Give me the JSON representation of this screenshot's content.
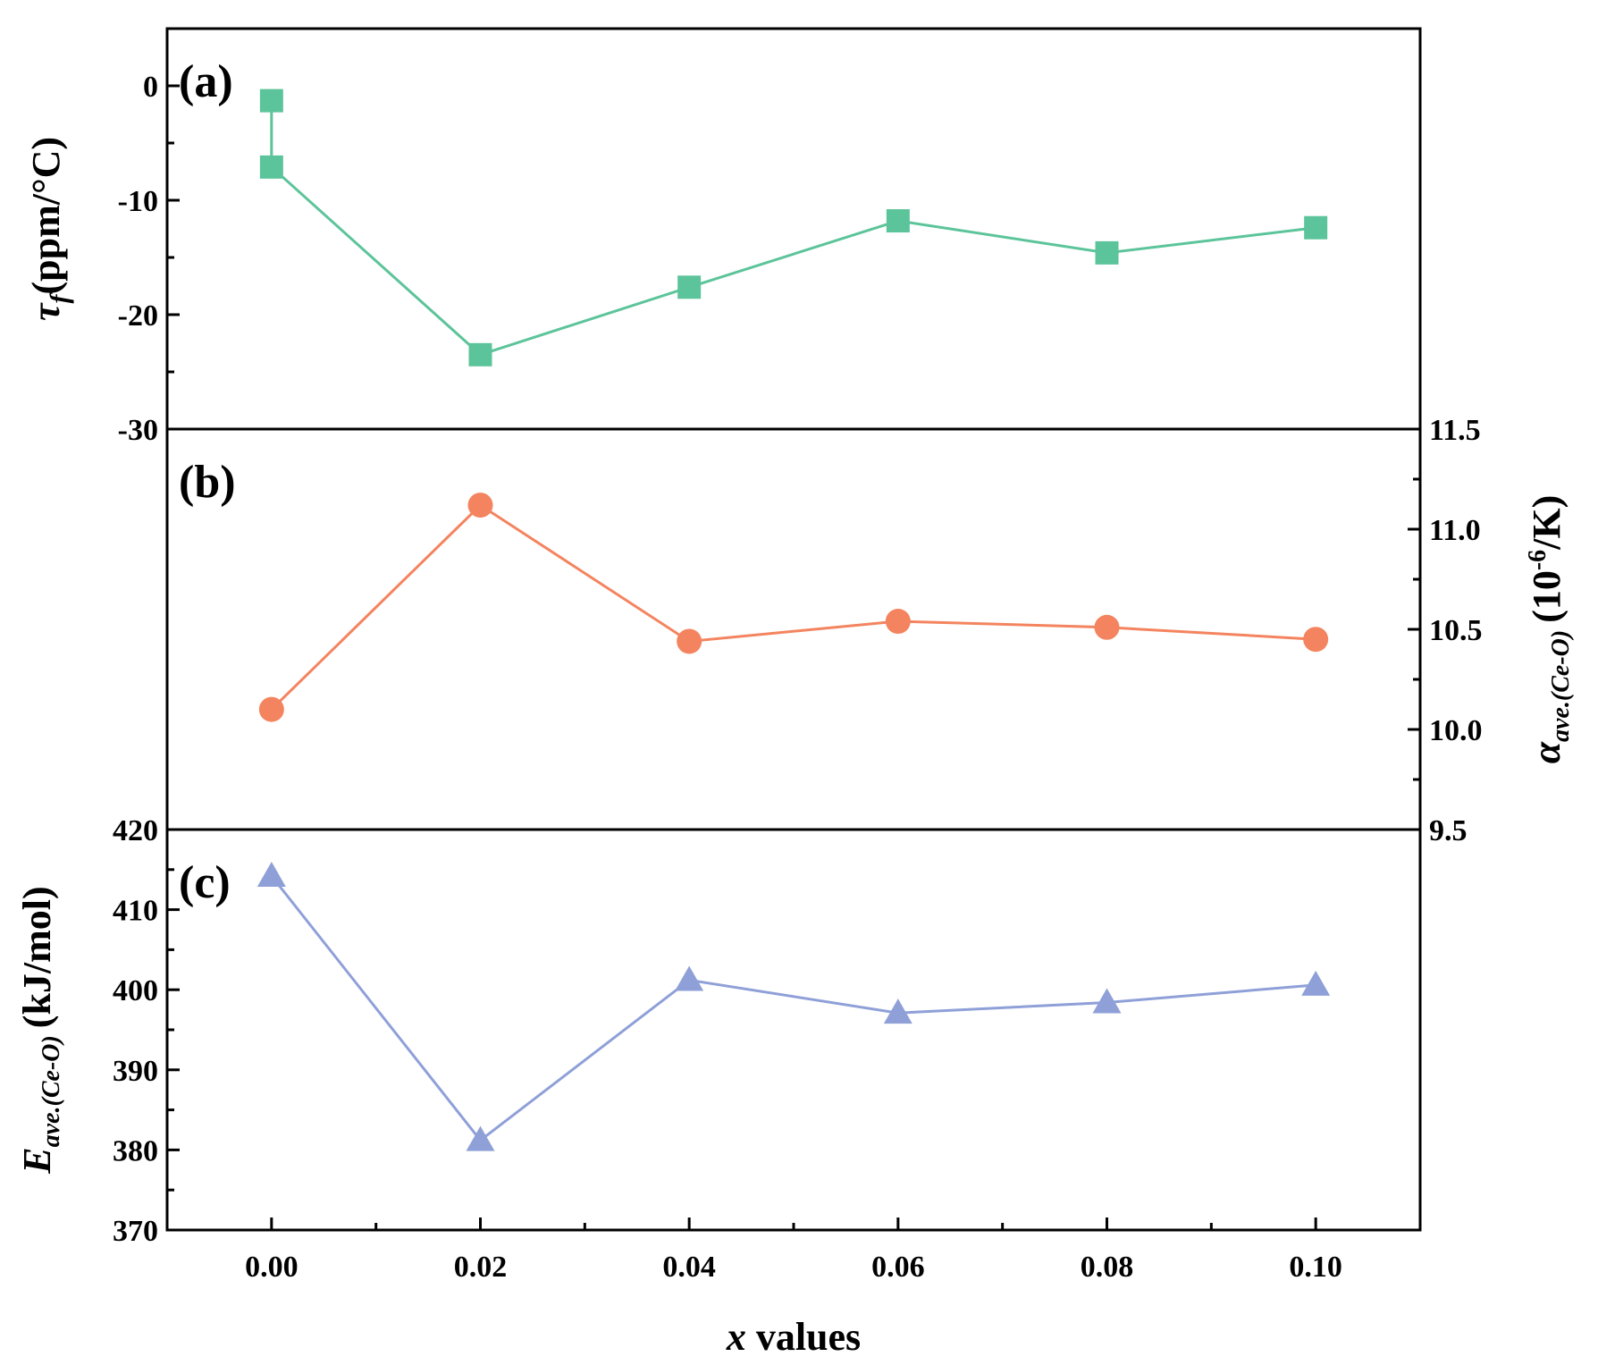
{
  "chart_data": [
    {
      "type": "line",
      "panel_label": "(a)",
      "marker": "square",
      "color": "#5cc49a",
      "x": [
        0.0,
        0.0,
        0.02,
        0.04,
        0.06,
        0.08,
        0.1
      ],
      "values": [
        -1.3,
        -7.1,
        -23.5,
        -17.6,
        -11.8,
        -14.6,
        -12.4
      ],
      "ylabel": {
        "symbol": "τ",
        "sub": "f",
        "text": "(ppm/°C)"
      },
      "y_axis_side": "left",
      "ylim": [
        -30,
        5
      ],
      "yticks": [
        0,
        -10,
        -20,
        -30
      ],
      "ytick_labels": [
        "0",
        "-10",
        "-20",
        "-30"
      ]
    },
    {
      "type": "line",
      "panel_label": "(b)",
      "marker": "circle",
      "color": "#f4845f",
      "x": [
        0.0,
        0.02,
        0.04,
        0.06,
        0.08,
        0.1
      ],
      "values": [
        10.1,
        11.12,
        10.44,
        10.54,
        10.51,
        10.45
      ],
      "ylabel": {
        "symbol": "α",
        "sub": "ave.(Ce-O)",
        "text": "(10",
        "sup": "-6",
        "tail": "/K)"
      },
      "y_axis_side": "right",
      "ylim": [
        9.5,
        11.5
      ],
      "yticks": [
        11.5,
        11.0,
        10.5,
        10.0,
        9.5
      ],
      "ytick_labels": [
        "11.5",
        "11.0",
        "10.5",
        "10.0",
        "9.5"
      ]
    },
    {
      "type": "line",
      "panel_label": "(c)",
      "marker": "triangle",
      "color": "#8fa0d8",
      "x": [
        0.0,
        0.02,
        0.04,
        0.06,
        0.08,
        0.1
      ],
      "values": [
        414.2,
        381.2,
        401.2,
        397.1,
        398.4,
        400.6
      ],
      "ylabel": {
        "symbol": "E",
        "sub": "ave.(Ce-O)",
        "text": "(kJ/mol)"
      },
      "y_axis_side": "left",
      "ylim": [
        370,
        420
      ],
      "yticks": [
        420,
        410,
        400,
        390,
        380,
        370
      ],
      "ytick_labels": [
        "420",
        "410",
        "400",
        "390",
        "380",
        "370"
      ]
    }
  ],
  "x_axis": {
    "label_italic": "x",
    "label_rest": " values",
    "xlim": [
      -0.01,
      0.11
    ],
    "ticks": [
      0.0,
      0.02,
      0.04,
      0.06,
      0.08,
      0.1
    ],
    "tick_labels": [
      "0.00",
      "0.02",
      "0.04",
      "0.06",
      "0.08",
      "0.10"
    ]
  }
}
